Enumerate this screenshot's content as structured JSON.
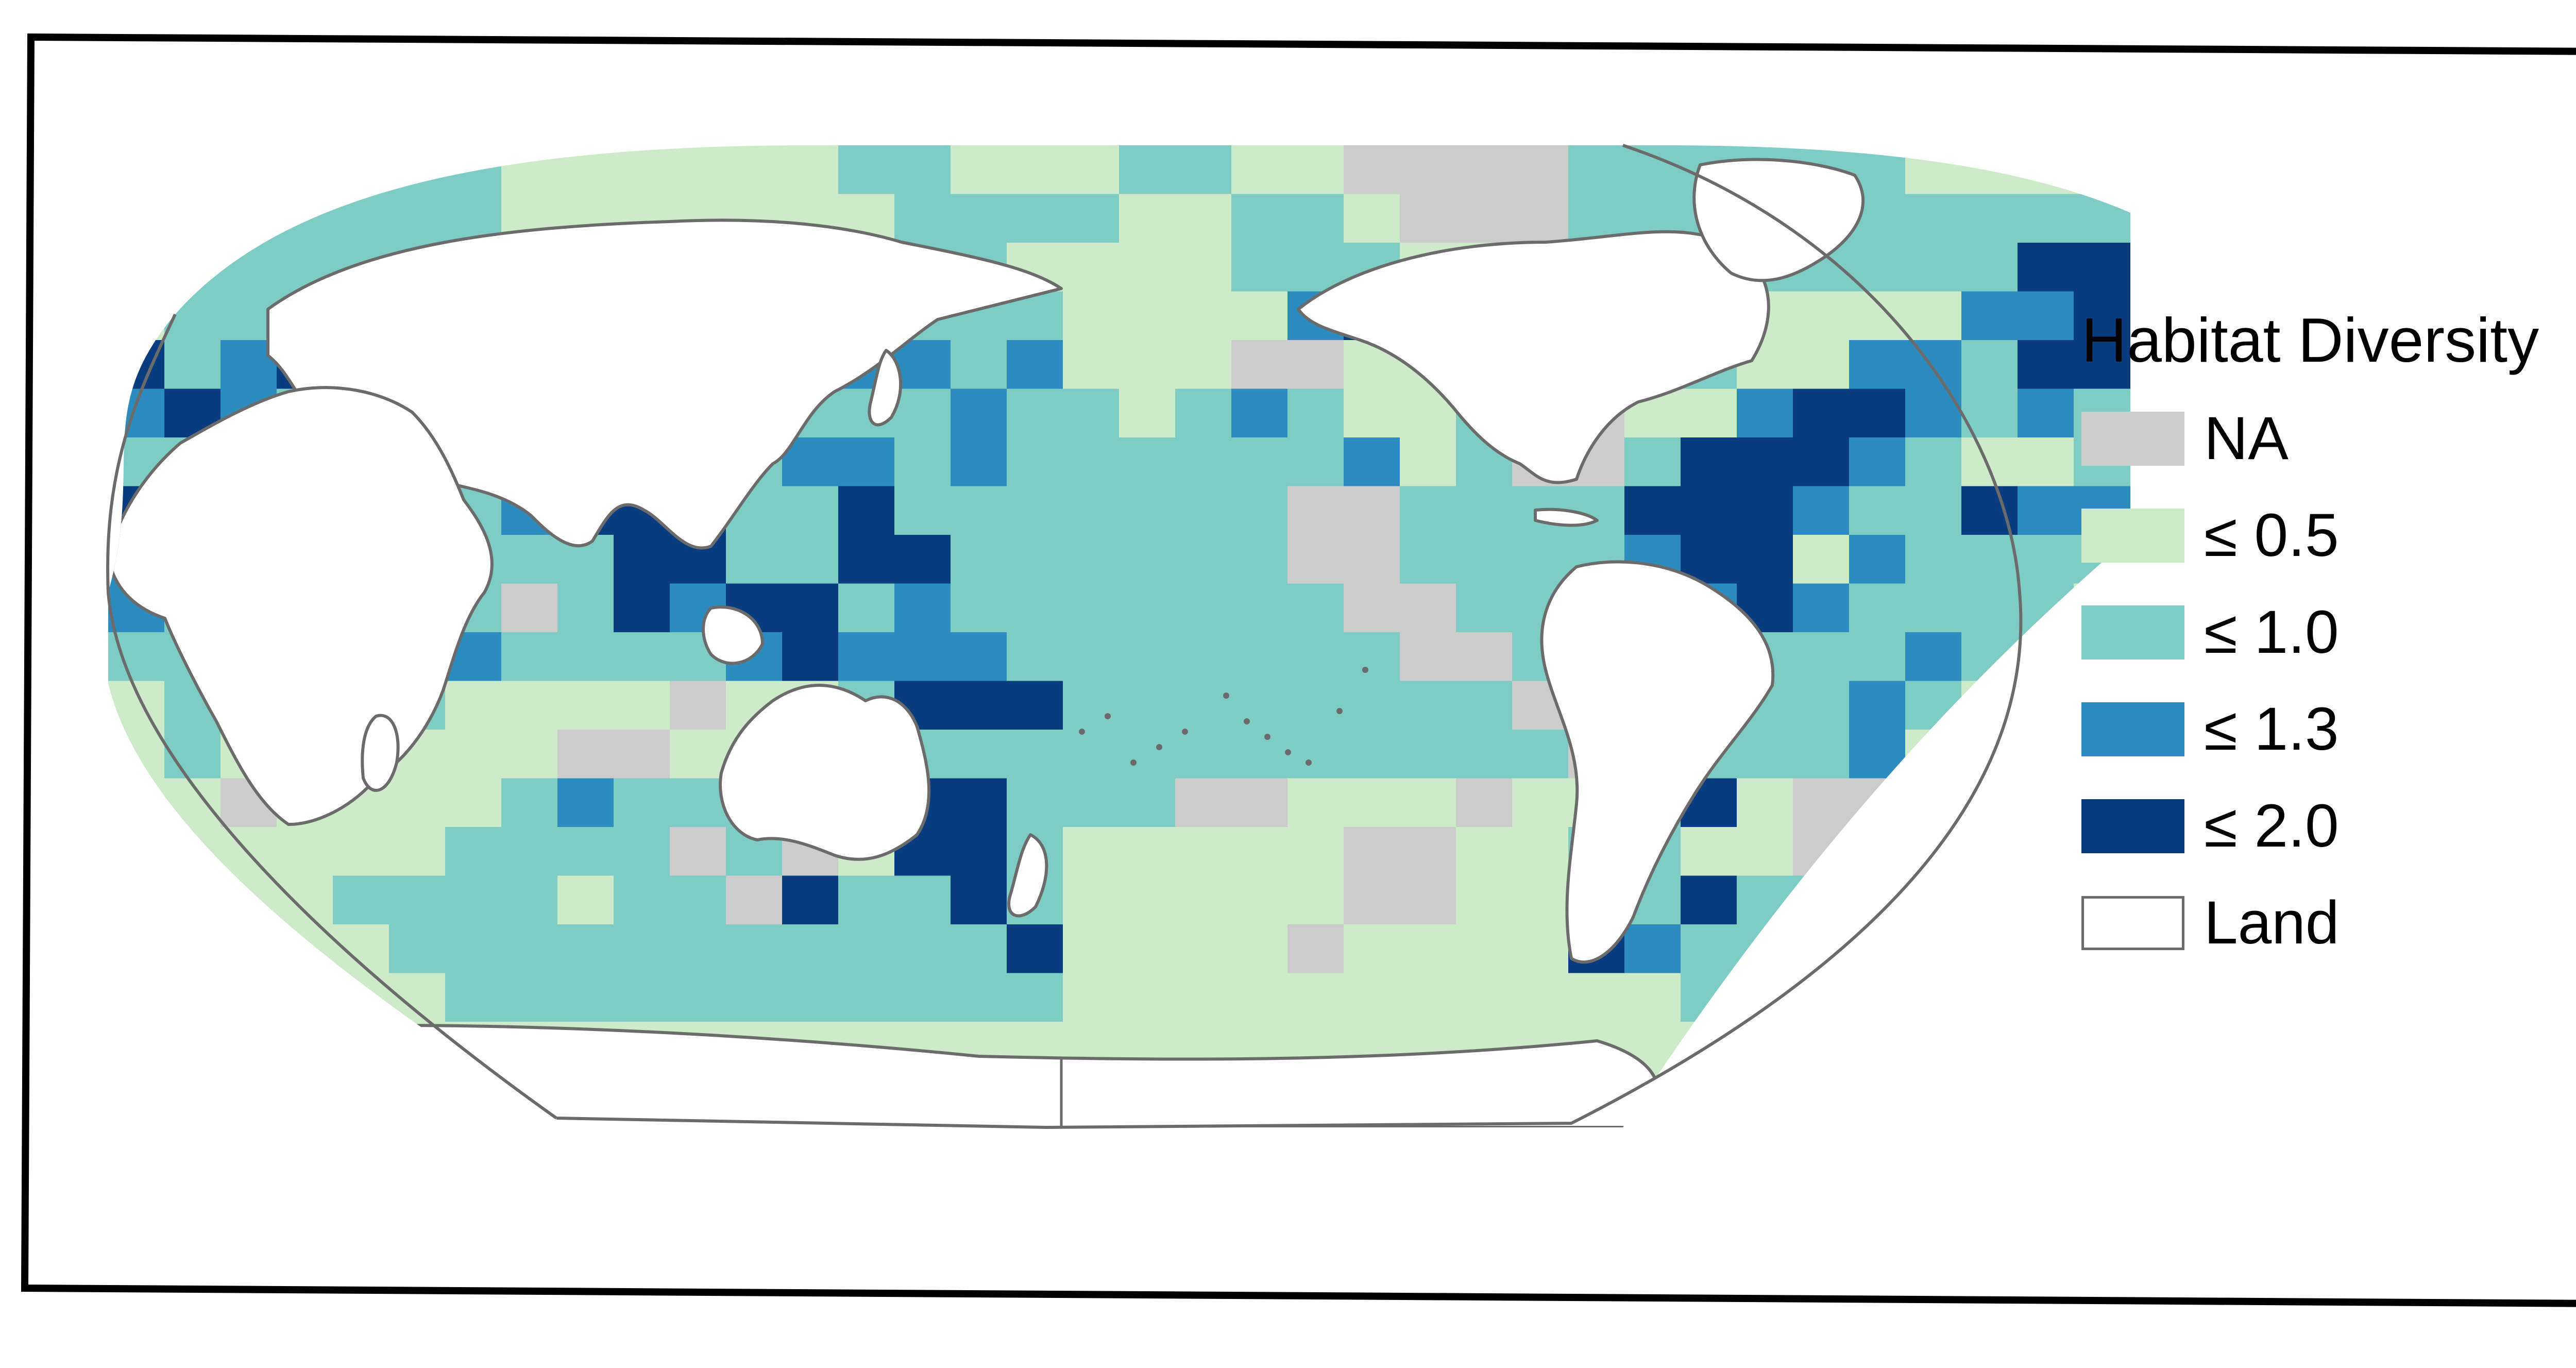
{
  "legend": {
    "title": "Habitat Diversity",
    "items": [
      {
        "label": "NA",
        "color": "#cccccc"
      },
      {
        "label": "≤ 0.5",
        "color": "#cdebc8"
      },
      {
        "label": "≤ 1.0",
        "color": "#7ecdc4"
      },
      {
        "label": "≤ 1.3",
        "color": "#2c8cc0"
      },
      {
        "label": "≤ 2.0",
        "color": "#0a3d80"
      },
      {
        "label": "Land",
        "color": "#ffffff"
      }
    ]
  },
  "colors": {
    "land": "#ffffff",
    "coastline": "#6b6b6b",
    "frame": "#000000",
    "ice_edge": "#bfe6f7"
  },
  "map": {
    "projection": "Robinson (Pacific-centred)",
    "cell_size_deg": 15
  }
}
